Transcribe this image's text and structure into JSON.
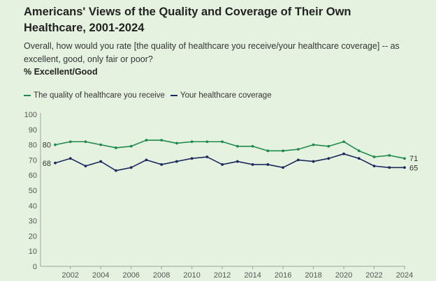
{
  "header": {
    "title": "Americans' Views of the Quality and Coverage of Their Own Healthcare, 2001-2024",
    "subtitle": "Overall, how would you rate [the quality of healthcare you receive/your healthcare coverage] -- as excellent, good, only fair or poor?",
    "measure": "% Excellent/Good"
  },
  "chart_data": {
    "type": "line",
    "title": "Americans' Views of the Quality and Coverage of Their Own Healthcare, 2001-2024",
    "xlabel": "",
    "ylabel": "",
    "xlim": [
      2001,
      2024
    ],
    "ylim": [
      0,
      100
    ],
    "y_ticks": [
      0,
      10,
      20,
      30,
      40,
      50,
      60,
      70,
      80,
      90,
      100
    ],
    "x_ticks": [
      2002,
      2004,
      2006,
      2008,
      2010,
      2012,
      2014,
      2016,
      2018,
      2020,
      2022,
      2024
    ],
    "grid": false,
    "legend_position": "top-left",
    "x": [
      2001,
      2002,
      2003,
      2004,
      2005,
      2006,
      2007,
      2008,
      2009,
      2010,
      2011,
      2012,
      2013,
      2014,
      2015,
      2016,
      2017,
      2018,
      2019,
      2020,
      2021,
      2022,
      2023,
      2024
    ],
    "series": [
      {
        "name": "The quality of healthcare you receive",
        "color": "#1e8a4c",
        "values": [
          80,
          82,
          82,
          80,
          78,
          79,
          83,
          83,
          81,
          82,
          82,
          82,
          79,
          79,
          76,
          76,
          77,
          80,
          79,
          82,
          76,
          72,
          73,
          71
        ],
        "start_label": "80",
        "end_label": "71"
      },
      {
        "name": "Your healthcare coverage",
        "color": "#1b2a5c",
        "values": [
          68,
          71,
          66,
          69,
          63,
          65,
          70,
          67,
          69,
          71,
          72,
          67,
          69,
          67,
          67,
          65,
          70,
          69,
          71,
          74,
          71,
          66,
          65,
          65
        ],
        "start_label": "68",
        "end_label": "65"
      }
    ]
  }
}
